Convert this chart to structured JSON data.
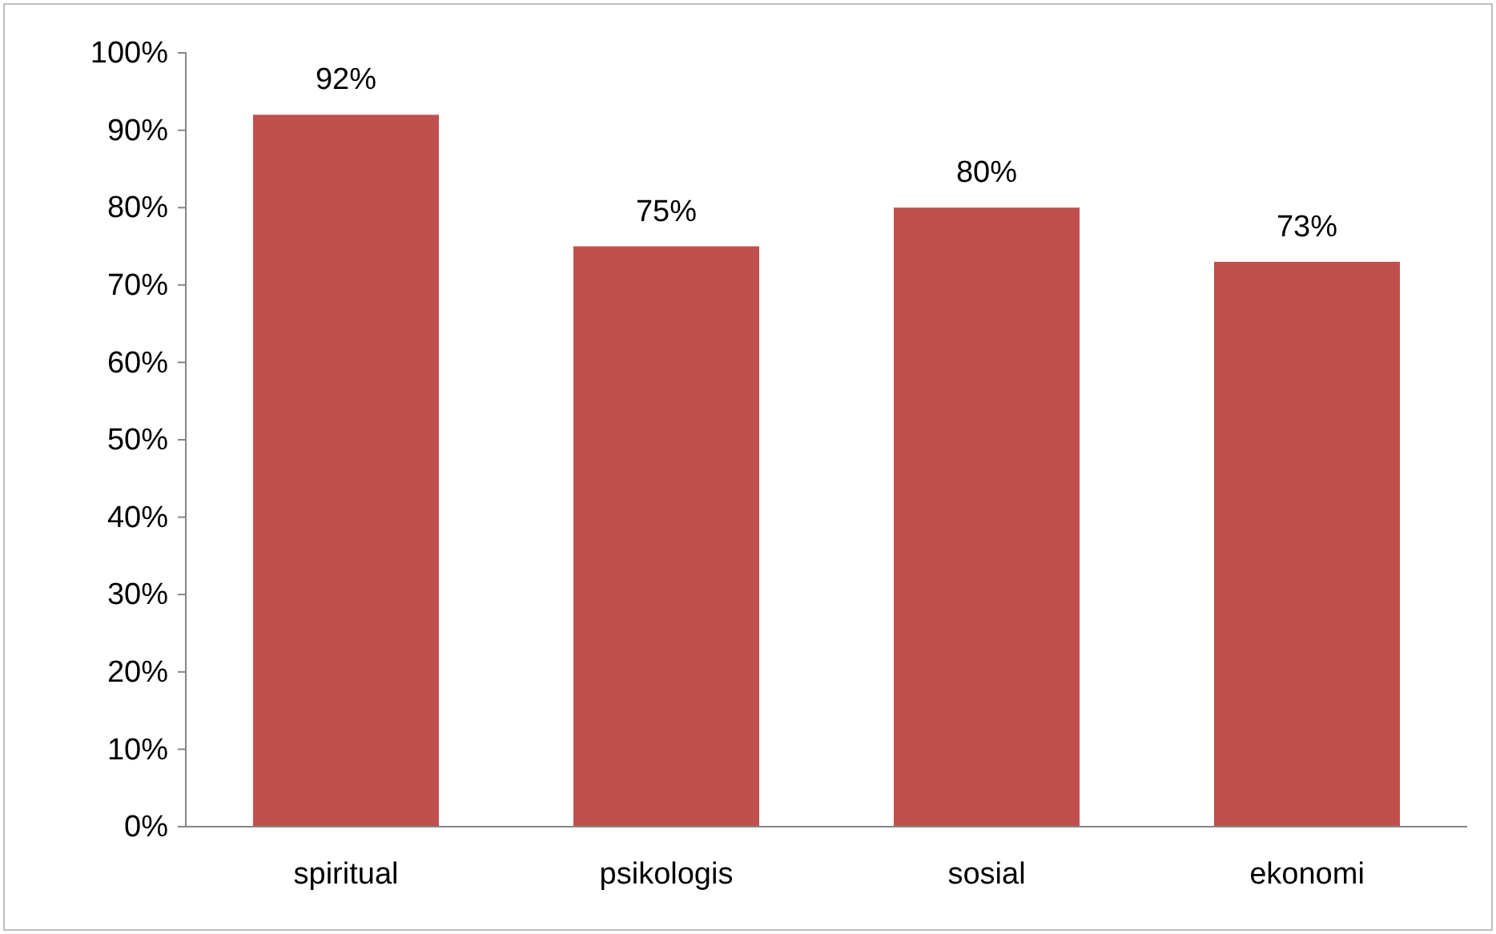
{
  "chart_data": {
    "type": "bar",
    "categories": [
      "spiritual",
      "psikologis",
      "sosial",
      "ekonomi"
    ],
    "values": [
      92,
      75,
      80,
      73
    ],
    "color": "#c0504d",
    "value_labels": [
      "92%",
      "75%",
      "80%",
      "73%"
    ],
    "ylim": [
      0,
      100
    ],
    "yticks": [
      {
        "value": 0,
        "label": "0%"
      },
      {
        "value": 10,
        "label": "10%"
      },
      {
        "value": 20,
        "label": "20%"
      },
      {
        "value": 30,
        "label": "30%"
      },
      {
        "value": 40,
        "label": "40%"
      },
      {
        "value": 50,
        "label": "50%"
      },
      {
        "value": 60,
        "label": "60%"
      },
      {
        "value": 70,
        "label": "70%"
      },
      {
        "value": 80,
        "label": "80%"
      },
      {
        "value": 90,
        "label": "90%"
      },
      {
        "value": 100,
        "label": "100%"
      }
    ],
    "grid": false
  }
}
